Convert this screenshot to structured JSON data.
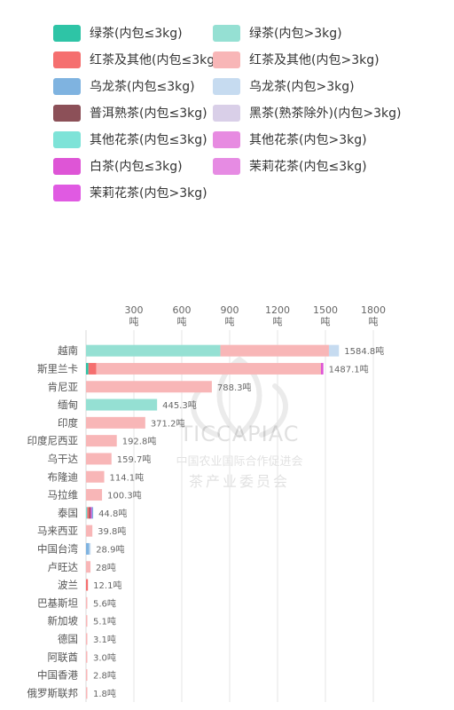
{
  "legend": [
    {
      "label": "绿茶(内包≤3kg)",
      "color": "#2ec4a6"
    },
    {
      "label": "绿茶(内包>3kg)",
      "color": "#95e0d3"
    },
    {
      "label": "红茶及其他(内包≤3kg)",
      "color": "#f56f6f"
    },
    {
      "label": "红茶及其他(内包>3kg)",
      "color": "#f8b6b7"
    },
    {
      "label": "乌龙茶(内包≤3kg)",
      "color": "#7fb3e0"
    },
    {
      "label": "乌龙茶(内包>3kg)",
      "color": "#c6dbf0"
    },
    {
      "label": "普洱熟茶(内包≤3kg)",
      "color": "#8c5058"
    },
    {
      "label": "黑茶(熟茶除外)(内包>3kg)",
      "color": "#d9cfe8"
    },
    {
      "label": "其他花茶(内包≤3kg)",
      "color": "#7ee3d8"
    },
    {
      "label": "其他花茶(内包>3kg)",
      "color": "#e78be1"
    },
    {
      "label": "白茶(内包≤3kg)",
      "color": "#de55d6"
    },
    {
      "label": "茉莉花茶(内包≤3kg)",
      "color": "#e68be3"
    },
    {
      "label": "茉莉花茶(内包>3kg)",
      "color": "#e05ae2"
    }
  ],
  "watermark": {
    "name": "TICCAPIAC",
    "line1": "中国农业国际合作促进会",
    "line2": "茶产业委员会"
  },
  "chart_data": {
    "type": "bar",
    "orientation": "horizontal",
    "stacked": true,
    "unit": "吨",
    "xlim": [
      0,
      1800
    ],
    "ticks": [
      {
        "value": 300,
        "label": "300",
        "unit": "吨"
      },
      {
        "value": 600,
        "label": "600",
        "unit": "吨"
      },
      {
        "value": 900,
        "label": "900",
        "unit": "吨"
      },
      {
        "value": 1200,
        "label": "1200",
        "unit": "吨"
      },
      {
        "value": 1500,
        "label": "1500",
        "unit": "吨"
      },
      {
        "value": 1800,
        "label": "1800",
        "unit": "吨"
      }
    ],
    "grid": true,
    "legend_position": "top",
    "categories": [
      {
        "name": "越南",
        "total_label": "1584.8吨",
        "segments": [
          {
            "series": 1,
            "value": 842
          },
          {
            "series": 3,
            "value": 680
          },
          {
            "series": 5,
            "value": 62.8
          }
        ]
      },
      {
        "name": "斯里兰卡",
        "total_label": "1487.1吨",
        "segments": [
          {
            "series": 0,
            "value": 15
          },
          {
            "series": 2,
            "value": 50
          },
          {
            "series": 3,
            "value": 1407
          },
          {
            "series": 10,
            "value": 15.1
          }
        ]
      },
      {
        "name": "肯尼亚",
        "total_label": "788.3吨",
        "segments": [
          {
            "series": 3,
            "value": 788.3
          }
        ]
      },
      {
        "name": "缅甸",
        "total_label": "445.3吨",
        "segments": [
          {
            "series": 1,
            "value": 445.3
          }
        ]
      },
      {
        "name": "印度",
        "total_label": "371.2吨",
        "segments": [
          {
            "series": 3,
            "value": 371.2
          }
        ]
      },
      {
        "name": "印度尼西亚",
        "total_label": "192.8吨",
        "segments": [
          {
            "series": 3,
            "value": 192.8
          }
        ]
      },
      {
        "name": "乌干达",
        "total_label": "159.7吨",
        "segments": [
          {
            "series": 3,
            "value": 159.7
          }
        ]
      },
      {
        "name": "布隆迪",
        "total_label": "114.1吨",
        "segments": [
          {
            "series": 3,
            "value": 114.1
          }
        ]
      },
      {
        "name": "马拉维",
        "total_label": "100.3吨",
        "segments": [
          {
            "series": 3,
            "value": 100.3
          }
        ]
      },
      {
        "name": "泰国",
        "total_label": "44.8吨",
        "segments": [
          {
            "series": 8,
            "value": 8
          },
          {
            "series": 2,
            "value": 12
          },
          {
            "series": 6,
            "value": 8
          },
          {
            "series": 10,
            "value": 8
          },
          {
            "series": 4,
            "value": 8.8
          }
        ]
      },
      {
        "name": "马来西亚",
        "total_label": "39.8吨",
        "segments": [
          {
            "series": 3,
            "value": 39.8
          }
        ]
      },
      {
        "name": "中国台湾",
        "total_label": "28.9吨",
        "segments": [
          {
            "series": 4,
            "value": 20
          },
          {
            "series": 5,
            "value": 8.9
          }
        ]
      },
      {
        "name": "卢旺达",
        "total_label": "28吨",
        "segments": [
          {
            "series": 3,
            "value": 28
          }
        ]
      },
      {
        "name": "波兰",
        "total_label": "12.1吨",
        "segments": [
          {
            "series": 2,
            "value": 12.1
          }
        ]
      },
      {
        "name": "巴基斯坦",
        "total_label": "5.6吨",
        "segments": [
          {
            "series": 3,
            "value": 5.6
          }
        ]
      },
      {
        "name": "新加坡",
        "total_label": "5.1吨",
        "segments": [
          {
            "series": 3,
            "value": 5.1
          }
        ]
      },
      {
        "name": "德国",
        "total_label": "3.1吨",
        "segments": [
          {
            "series": 3,
            "value": 3.1
          }
        ]
      },
      {
        "name": "阿联酋",
        "total_label": "3.0吨",
        "segments": [
          {
            "series": 3,
            "value": 3.0
          }
        ]
      },
      {
        "name": "中国香港",
        "total_label": "2.8吨",
        "segments": [
          {
            "series": 3,
            "value": 2.8
          }
        ]
      },
      {
        "name": "俄罗斯联邦",
        "total_label": "1.8吨",
        "segments": [
          {
            "series": 3,
            "value": 1.8
          }
        ]
      }
    ]
  }
}
